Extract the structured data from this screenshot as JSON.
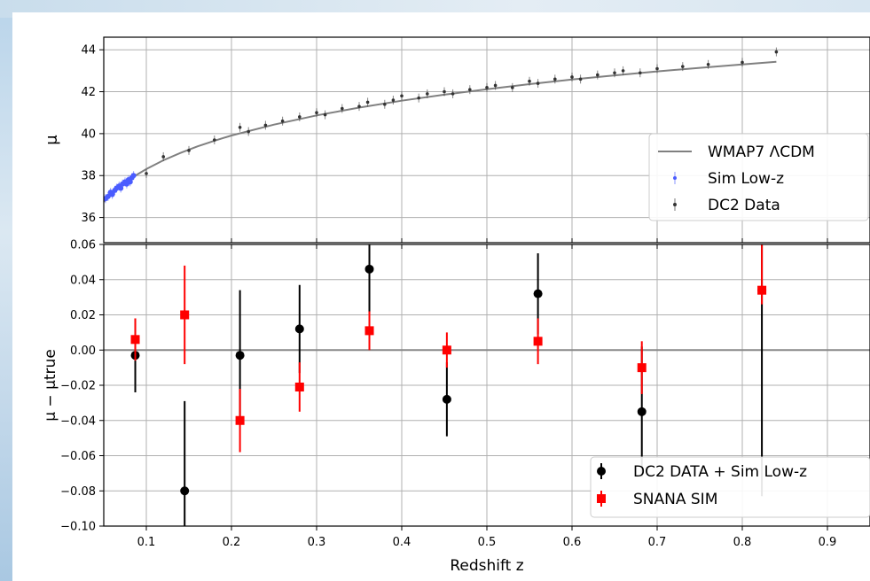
{
  "chart_data": [
    {
      "type": "scatter",
      "panel": "top",
      "ylabel": "μ",
      "xlim": [
        0.05,
        0.95
      ],
      "ylim": [
        34.8,
        44.6
      ],
      "yticks": [
        36,
        38,
        40,
        42,
        44
      ],
      "xticks": [
        0.1,
        0.2,
        0.3,
        0.4,
        0.5,
        0.6,
        0.7,
        0.8,
        0.9
      ],
      "grid": true,
      "legend_position": "lower-right",
      "series": [
        {
          "name": "WMAP7 ΛCDM",
          "kind": "line",
          "color": "#808080",
          "x": [
            0.05,
            0.06,
            0.07,
            0.08,
            0.09,
            0.1,
            0.12,
            0.14,
            0.16,
            0.18,
            0.2,
            0.25,
            0.3,
            0.35,
            0.4,
            0.45,
            0.5,
            0.55,
            0.6,
            0.65,
            0.7,
            0.75,
            0.8,
            0.84
          ],
          "y": [
            36.75,
            37.16,
            37.51,
            37.81,
            38.07,
            38.31,
            38.73,
            39.08,
            39.39,
            39.66,
            39.91,
            40.43,
            40.87,
            41.24,
            41.57,
            41.86,
            42.12,
            42.36,
            42.58,
            42.78,
            42.97,
            43.14,
            43.3,
            43.43
          ]
        },
        {
          "name": "Sim Low-z",
          "kind": "points",
          "color": "#4a5cff",
          "x": [
            0.052,
            0.055,
            0.058,
            0.06,
            0.063,
            0.065,
            0.068,
            0.07,
            0.072,
            0.075,
            0.077,
            0.079,
            0.081,
            0.083,
            0.085
          ],
          "y": [
            36.9,
            37.0,
            37.2,
            37.1,
            37.3,
            37.4,
            37.5,
            37.4,
            37.6,
            37.7,
            37.6,
            37.8,
            37.7,
            37.9,
            38.0
          ]
        },
        {
          "name": "DC2 Data",
          "kind": "points",
          "color": "#333333",
          "x": [
            0.1,
            0.12,
            0.15,
            0.18,
            0.21,
            0.22,
            0.24,
            0.26,
            0.28,
            0.3,
            0.31,
            0.33,
            0.35,
            0.36,
            0.38,
            0.39,
            0.4,
            0.42,
            0.43,
            0.45,
            0.46,
            0.48,
            0.5,
            0.51,
            0.53,
            0.55,
            0.56,
            0.58,
            0.6,
            0.61,
            0.63,
            0.65,
            0.66,
            0.68,
            0.7,
            0.73,
            0.76,
            0.8,
            0.84
          ],
          "y": [
            38.1,
            38.9,
            39.2,
            39.7,
            40.3,
            40.1,
            40.4,
            40.6,
            40.8,
            41.0,
            40.9,
            41.2,
            41.3,
            41.5,
            41.4,
            41.6,
            41.8,
            41.7,
            41.9,
            42.0,
            41.9,
            42.1,
            42.2,
            42.3,
            42.2,
            42.5,
            42.4,
            42.6,
            42.7,
            42.6,
            42.8,
            42.9,
            43.0,
            42.9,
            43.1,
            43.2,
            43.3,
            43.4,
            43.9
          ]
        }
      ]
    },
    {
      "type": "scatter",
      "panel": "bottom",
      "xlabel": "Redshift z",
      "ylabel": "μ − μtrue",
      "xlim": [
        0.05,
        0.95
      ],
      "ylim": [
        -0.1,
        0.06
      ],
      "yticks": [
        -0.1,
        -0.08,
        -0.06,
        -0.04,
        -0.02,
        0.0,
        0.02,
        0.04,
        0.06
      ],
      "xticks": [
        0.1,
        0.2,
        0.3,
        0.4,
        0.5,
        0.6,
        0.7,
        0.8,
        0.9
      ],
      "grid": true,
      "legend_position": "lower-right",
      "series": [
        {
          "name": "DC2 DATA + Sim Low-z",
          "marker": "circle",
          "color": "#000000",
          "points": [
            {
              "x": 0.087,
              "y": -0.003,
              "lo": -0.024,
              "hi": 0.018
            },
            {
              "x": 0.145,
              "y": -0.08,
              "lo": -0.1,
              "hi": -0.029
            },
            {
              "x": 0.21,
              "y": -0.003,
              "lo": -0.04,
              "hi": 0.034
            },
            {
              "x": 0.28,
              "y": 0.012,
              "lo": -0.013,
              "hi": 0.037
            },
            {
              "x": 0.362,
              "y": 0.046,
              "lo": 0.021,
              "hi": 0.06
            },
            {
              "x": 0.453,
              "y": -0.028,
              "lo": -0.049,
              "hi": -0.007
            },
            {
              "x": 0.56,
              "y": 0.032,
              "lo": 0.009,
              "hi": 0.055
            },
            {
              "x": 0.682,
              "y": -0.035,
              "lo": -0.072,
              "hi": 0.002
            },
            {
              "x": 0.823,
              "y": 0.034,
              "lo": -0.083,
              "hi": 0.06
            }
          ]
        },
        {
          "name": "SNANA SIM",
          "marker": "square",
          "color": "#ff0000",
          "points": [
            {
              "x": 0.087,
              "y": 0.006,
              "lo": -0.006,
              "hi": 0.018
            },
            {
              "x": 0.145,
              "y": 0.02,
              "lo": -0.008,
              "hi": 0.048
            },
            {
              "x": 0.21,
              "y": -0.04,
              "lo": -0.058,
              "hi": -0.022
            },
            {
              "x": 0.28,
              "y": -0.021,
              "lo": -0.035,
              "hi": -0.007
            },
            {
              "x": 0.362,
              "y": 0.011,
              "lo": 0.0,
              "hi": 0.022
            },
            {
              "x": 0.453,
              "y": 0.0,
              "lo": -0.01,
              "hi": 0.01
            },
            {
              "x": 0.56,
              "y": 0.005,
              "lo": -0.008,
              "hi": 0.018
            },
            {
              "x": 0.682,
              "y": -0.01,
              "lo": -0.025,
              "hi": 0.005
            },
            {
              "x": 0.823,
              "y": 0.034,
              "lo": 0.026,
              "hi": 0.06
            }
          ]
        }
      ]
    }
  ],
  "legend_top": {
    "items": [
      {
        "label": "WMAP7 ΛCDM"
      },
      {
        "label": "Sim Low-z"
      },
      {
        "label": "DC2 Data"
      }
    ]
  },
  "legend_bottom": {
    "items": [
      {
        "label": "DC2 DATA + Sim Low-z"
      },
      {
        "label": "SNANA SIM"
      }
    ]
  },
  "axes": {
    "top_ylabel": "μ",
    "bottom_ylabel": "μ − μtrue",
    "xlabel": "Redshift z"
  }
}
